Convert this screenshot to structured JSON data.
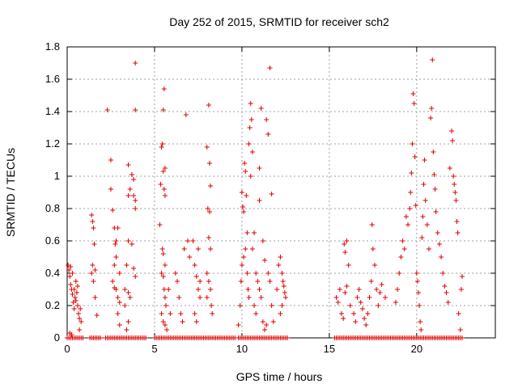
{
  "chart_data": {
    "type": "scatter",
    "title": "Day 252 of 2015, SRMTID for receiver sch2",
    "xlabel": "GPS time / hours",
    "ylabel": "SRMTID / TECUs",
    "xlim": [
      0,
      24.5
    ],
    "ylim": [
      0,
      1.8
    ],
    "x_ticks": [
      "0",
      "5",
      "10",
      "15",
      "20"
    ],
    "y_ticks": [
      "0",
      "0.2",
      "0.4",
      "0.6",
      "0.8",
      "1",
      "1.2",
      "1.4",
      "1.6",
      "1.8"
    ],
    "grid": true,
    "marker": "+",
    "series_color": "#e00000",
    "series": [
      {
        "name": "sch2",
        "points": [
          [
            0.05,
            0.45
          ],
          [
            0.1,
            0.42
          ],
          [
            0.15,
            0.38
          ],
          [
            0.2,
            0.33
          ],
          [
            0.25,
            0.3
          ],
          [
            0.3,
            0.27
          ],
          [
            0.35,
            0.22
          ],
          [
            0.4,
            0.18
          ],
          [
            0.45,
            0.25
          ],
          [
            0.5,
            0.35
          ],
          [
            0.55,
            0.28
          ],
          [
            0.6,
            0.2
          ],
          [
            0.65,
            0.15
          ],
          [
            0.7,
            0.12
          ],
          [
            0.75,
            0.18
          ],
          [
            0.8,
            0.1
          ],
          [
            0.2,
            0.44
          ],
          [
            0.3,
            0.4
          ],
          [
            0.4,
            0.3
          ],
          [
            0.5,
            0.23
          ],
          [
            0.6,
            0.32
          ],
          [
            0.7,
            0.05
          ],
          [
            0.15,
            0.03
          ],
          [
            0.25,
            0.02
          ],
          [
            1.4,
            0.76
          ],
          [
            1.45,
            0.72
          ],
          [
            1.5,
            0.68
          ],
          [
            1.55,
            0.58
          ],
          [
            1.45,
            0.45
          ],
          [
            1.6,
            0.42
          ],
          [
            1.5,
            0.35
          ],
          [
            1.6,
            0.25
          ],
          [
            1.7,
            0.14
          ],
          [
            1.4,
            0.4
          ],
          [
            2.3,
            1.41
          ],
          [
            2.5,
            1.1
          ],
          [
            2.5,
            0.92
          ],
          [
            2.6,
            0.79
          ],
          [
            2.7,
            0.68
          ],
          [
            2.75,
            0.58
          ],
          [
            2.8,
            0.5
          ],
          [
            2.7,
            0.45
          ],
          [
            2.6,
            0.35
          ],
          [
            2.8,
            0.3
          ],
          [
            2.9,
            0.25
          ],
          [
            3.0,
            0.22
          ],
          [
            2.9,
            0.15
          ],
          [
            3.0,
            0.4
          ],
          [
            2.8,
            0.6
          ],
          [
            2.9,
            0.68
          ],
          [
            2.7,
            0.31
          ],
          [
            3.0,
            0.08
          ],
          [
            3.3,
            0.3
          ],
          [
            3.4,
            0.45
          ],
          [
            3.5,
            0.6
          ],
          [
            3.5,
            0.88
          ],
          [
            3.5,
            1.07
          ],
          [
            3.6,
            0.92
          ],
          [
            3.7,
            1.01
          ],
          [
            3.8,
            0.98
          ],
          [
            3.9,
            1.7
          ],
          [
            3.9,
            1.41
          ],
          [
            3.8,
            0.88
          ],
          [
            3.9,
            0.85
          ],
          [
            3.9,
            0.8
          ],
          [
            3.7,
            0.58
          ],
          [
            3.8,
            0.43
          ],
          [
            3.9,
            0.38
          ],
          [
            3.4,
            0.05
          ],
          [
            3.5,
            0.1
          ],
          [
            3.3,
            0.2
          ],
          [
            3.6,
            0.25
          ],
          [
            3.5,
            0.28
          ],
          [
            5.3,
            0.7
          ],
          [
            5.35,
            0.95
          ],
          [
            5.4,
            1.18
          ],
          [
            5.45,
            1.2
          ],
          [
            5.5,
            1.41
          ],
          [
            5.55,
            1.54
          ],
          [
            5.5,
            1.03
          ],
          [
            5.6,
            1.05
          ],
          [
            5.55,
            0.92
          ],
          [
            5.6,
            0.88
          ],
          [
            5.45,
            0.55
          ],
          [
            5.5,
            0.52
          ],
          [
            5.6,
            0.45
          ],
          [
            5.4,
            0.4
          ],
          [
            5.5,
            0.38
          ],
          [
            5.55,
            0.3
          ],
          [
            5.6,
            0.25
          ],
          [
            5.65,
            0.2
          ],
          [
            5.4,
            0.15
          ],
          [
            5.5,
            0.1
          ],
          [
            5.6,
            0.08
          ],
          [
            5.7,
            0.05
          ],
          [
            5.8,
            0.3
          ],
          [
            5.9,
            0.15
          ],
          [
            6.2,
            0.4
          ],
          [
            6.3,
            0.35
          ],
          [
            6.4,
            0.25
          ],
          [
            6.5,
            0.15
          ],
          [
            6.6,
            0.1
          ],
          [
            6.7,
            0.55
          ],
          [
            6.8,
            1.38
          ],
          [
            6.9,
            0.6
          ],
          [
            7.0,
            0.5
          ],
          [
            7.2,
            0.6
          ],
          [
            7.3,
            0.45
          ],
          [
            7.4,
            0.38
          ],
          [
            7.5,
            0.3
          ],
          [
            7.6,
            0.25
          ],
          [
            7.3,
            0.15
          ],
          [
            7.4,
            0.1
          ],
          [
            7.5,
            0.55
          ],
          [
            7.6,
            0.35
          ],
          [
            8.0,
            1.18
          ],
          [
            8.1,
            1.44
          ],
          [
            8.15,
            1.08
          ],
          [
            8.2,
            0.94
          ],
          [
            8.05,
            0.8
          ],
          [
            8.15,
            0.78
          ],
          [
            8.1,
            0.62
          ],
          [
            8.2,
            0.55
          ],
          [
            8.0,
            0.4
          ],
          [
            8.1,
            0.35
          ],
          [
            8.2,
            0.3
          ],
          [
            8.25,
            0.2
          ],
          [
            8.3,
            0.15
          ],
          [
            8.0,
            0.25
          ],
          [
            9.8,
            0.08
          ],
          [
            9.9,
            0.2
          ],
          [
            9.95,
            0.35
          ],
          [
            10.0,
            0.9
          ],
          [
            10.05,
            0.81
          ],
          [
            10.1,
            0.78
          ],
          [
            10.15,
            1.08
          ],
          [
            10.2,
            1.03
          ],
          [
            10.25,
            0.88
          ],
          [
            10.3,
            0.4
          ],
          [
            10.35,
            0.3
          ],
          [
            10.4,
            0.25
          ],
          [
            10.1,
            0.5
          ],
          [
            10.2,
            0.55
          ],
          [
            10.0,
            0.45
          ],
          [
            10.3,
            0.65
          ],
          [
            10.4,
            1.2
          ],
          [
            10.45,
            1.3
          ],
          [
            10.5,
            1.45
          ],
          [
            10.55,
            1.35
          ],
          [
            10.6,
            1.15
          ],
          [
            10.5,
            1.0
          ],
          [
            10.6,
            0.55
          ],
          [
            10.7,
            0.65
          ],
          [
            10.8,
            0.4
          ],
          [
            10.9,
            0.35
          ],
          [
            10.7,
            0.2
          ],
          [
            10.8,
            0.15
          ],
          [
            11.0,
            1.05
          ],
          [
            11.0,
            0.85
          ],
          [
            11.1,
            1.42
          ],
          [
            11.2,
            0.6
          ],
          [
            11.3,
            0.48
          ],
          [
            11.4,
            1.35
          ],
          [
            11.5,
            1.26
          ],
          [
            11.6,
            1.67
          ],
          [
            11.7,
            0.89
          ],
          [
            11.0,
            0.3
          ],
          [
            11.1,
            0.25
          ],
          [
            11.2,
            0.1
          ],
          [
            11.3,
            0.05
          ],
          [
            11.4,
            0.08
          ],
          [
            11.5,
            0.4
          ],
          [
            11.6,
            0.35
          ],
          [
            11.7,
            0.2
          ],
          [
            11.8,
            0.1
          ],
          [
            12.0,
            0.3
          ],
          [
            12.1,
            0.45
          ],
          [
            12.2,
            0.5
          ],
          [
            12.3,
            0.4
          ],
          [
            12.35,
            0.35
          ],
          [
            12.4,
            0.32
          ],
          [
            12.45,
            0.28
          ],
          [
            12.5,
            0.25
          ],
          [
            12.2,
            0.15
          ],
          [
            12.3,
            0.2
          ],
          [
            15.4,
            0.25
          ],
          [
            15.5,
            0.22
          ],
          [
            15.6,
            0.3
          ],
          [
            15.7,
            0.15
          ],
          [
            15.8,
            0.12
          ],
          [
            15.9,
            0.28
          ],
          [
            16.0,
            0.32
          ],
          [
            15.85,
            0.58
          ],
          [
            15.9,
            0.53
          ],
          [
            16.0,
            0.6
          ],
          [
            16.1,
            0.45
          ],
          [
            16.2,
            0.2
          ],
          [
            16.4,
            0.15
          ],
          [
            16.5,
            0.1
          ],
          [
            16.6,
            0.25
          ],
          [
            16.7,
            0.3
          ],
          [
            16.8,
            0.22
          ],
          [
            16.9,
            0.18
          ],
          [
            17.0,
            0.12
          ],
          [
            17.1,
            0.08
          ],
          [
            17.2,
            0.15
          ],
          [
            17.3,
            0.25
          ],
          [
            17.4,
            0.35
          ],
          [
            17.45,
            0.7
          ],
          [
            17.5,
            0.55
          ],
          [
            17.6,
            0.45
          ],
          [
            17.7,
            0.3
          ],
          [
            17.8,
            0.2
          ],
          [
            17.9,
            0.28
          ],
          [
            18.0,
            0.33
          ],
          [
            18.2,
            0.25
          ],
          [
            18.8,
            0.22
          ],
          [
            18.9,
            0.3
          ],
          [
            19.0,
            0.4
          ],
          [
            19.1,
            0.5
          ],
          [
            19.2,
            0.6
          ],
          [
            19.3,
            0.55
          ],
          [
            19.4,
            0.75
          ],
          [
            19.5,
            0.7
          ],
          [
            19.6,
            0.8
          ],
          [
            19.65,
            0.9
          ],
          [
            19.7,
            1.02
          ],
          [
            19.75,
            1.2
          ],
          [
            19.8,
            1.51
          ],
          [
            19.85,
            1.45
          ],
          [
            19.9,
            1.12
          ],
          [
            19.95,
            0.82
          ],
          [
            20.0,
            0.4
          ],
          [
            20.05,
            0.35
          ],
          [
            20.1,
            0.28
          ],
          [
            20.15,
            0.2
          ],
          [
            20.2,
            0.1
          ],
          [
            20.25,
            0.05
          ],
          [
            20.3,
            0.62
          ],
          [
            20.35,
            0.75
          ],
          [
            20.4,
            0.95
          ],
          [
            20.45,
            1.1
          ],
          [
            20.5,
            0.85
          ],
          [
            20.6,
            0.7
          ],
          [
            20.7,
            0.55
          ],
          [
            20.8,
            1.36
          ],
          [
            20.85,
            1.42
          ],
          [
            20.9,
            1.72
          ],
          [
            20.95,
            1.15
          ],
          [
            21.0,
            1.01
          ],
          [
            21.05,
            0.92
          ],
          [
            21.1,
            0.78
          ],
          [
            21.2,
            0.65
          ],
          [
            21.3,
            0.58
          ],
          [
            21.4,
            0.5
          ],
          [
            21.5,
            0.4
          ],
          [
            21.6,
            0.32
          ],
          [
            21.7,
            0.28
          ],
          [
            21.8,
            0.22
          ],
          [
            21.9,
            1.05
          ],
          [
            22.0,
            1.28
          ],
          [
            22.05,
            1.22
          ],
          [
            22.1,
            1.0
          ],
          [
            22.15,
            0.95
          ],
          [
            22.2,
            0.9
          ],
          [
            22.25,
            0.85
          ],
          [
            22.3,
            0.72
          ],
          [
            22.35,
            0.65
          ],
          [
            22.4,
            0.15
          ],
          [
            22.5,
            0.05
          ],
          [
            22.6,
            0.38
          ],
          [
            22.55,
            0.3
          ]
        ],
        "zero_runs": [
          [
            0.0,
            0.9
          ],
          [
            1.3,
            1.9
          ],
          [
            2.2,
            4.5
          ],
          [
            5.0,
            9.6
          ],
          [
            9.8,
            12.6
          ],
          [
            15.3,
            22.6
          ]
        ]
      }
    ]
  }
}
